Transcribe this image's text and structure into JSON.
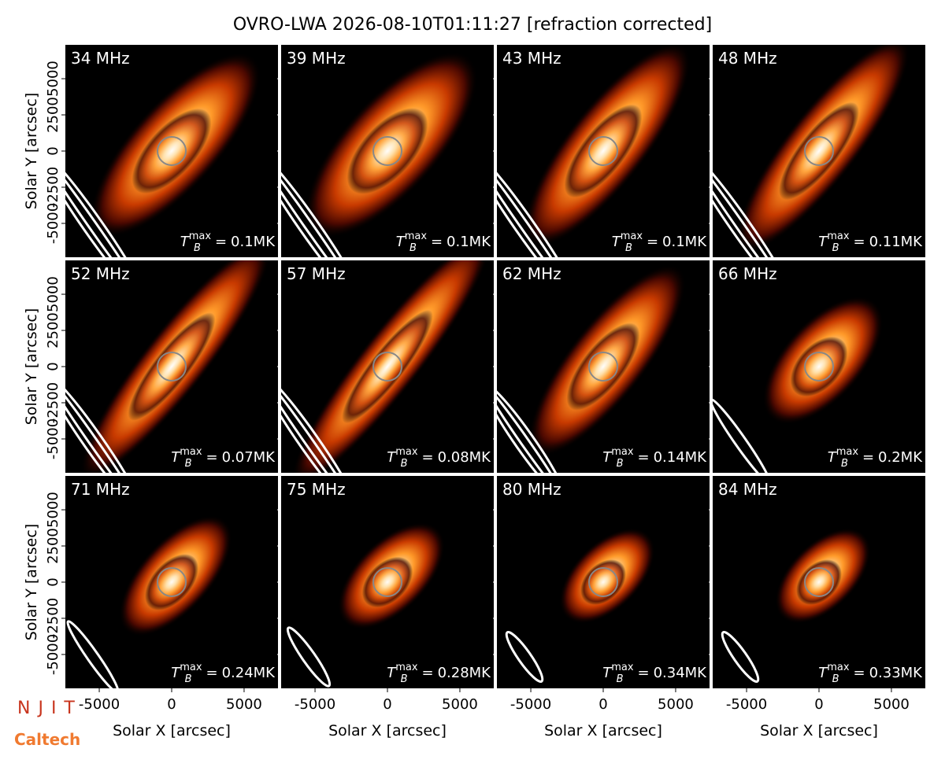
{
  "chart_data": {
    "type": "image_grid",
    "title": "OVRO-LWA 2026-08-10T01:11:27 [refraction corrected]",
    "xlabel": "Solar X [arcsec]",
    "ylabel": "Solar Y [arcsec]",
    "xlim": [
      -7340,
      7340
    ],
    "ylim": [
      -7340,
      7340
    ],
    "xticks": [
      -5000,
      0,
      5000
    ],
    "yticks": [
      -5000,
      -2500,
      0,
      2500,
      5000
    ],
    "tb_symbol": "T",
    "tb_sub": "B",
    "tb_sup": "max",
    "tb_eq": "=",
    "panels": [
      {
        "label": "34 MHz",
        "tb_max": "0.1MK"
      },
      {
        "label": "39 MHz",
        "tb_max": "0.1MK"
      },
      {
        "label": "43 MHz",
        "tb_max": "0.1MK"
      },
      {
        "label": "48 MHz",
        "tb_max": "0.11MK"
      },
      {
        "label": "52 MHz",
        "tb_max": "0.07MK"
      },
      {
        "label": "57 MHz",
        "tb_max": "0.08MK"
      },
      {
        "label": "62 MHz",
        "tb_max": "0.14MK"
      },
      {
        "label": "66 MHz",
        "tb_max": "0.2MK"
      },
      {
        "label": "71 MHz",
        "tb_max": "0.24MK"
      },
      {
        "label": "75 MHz",
        "tb_max": "0.28MK"
      },
      {
        "label": "80 MHz",
        "tb_max": "0.34MK"
      },
      {
        "label": "84 MHz",
        "tb_max": "0.33MK"
      }
    ]
  },
  "logos": {
    "njit": "NJIT",
    "caltech": "Caltech"
  }
}
